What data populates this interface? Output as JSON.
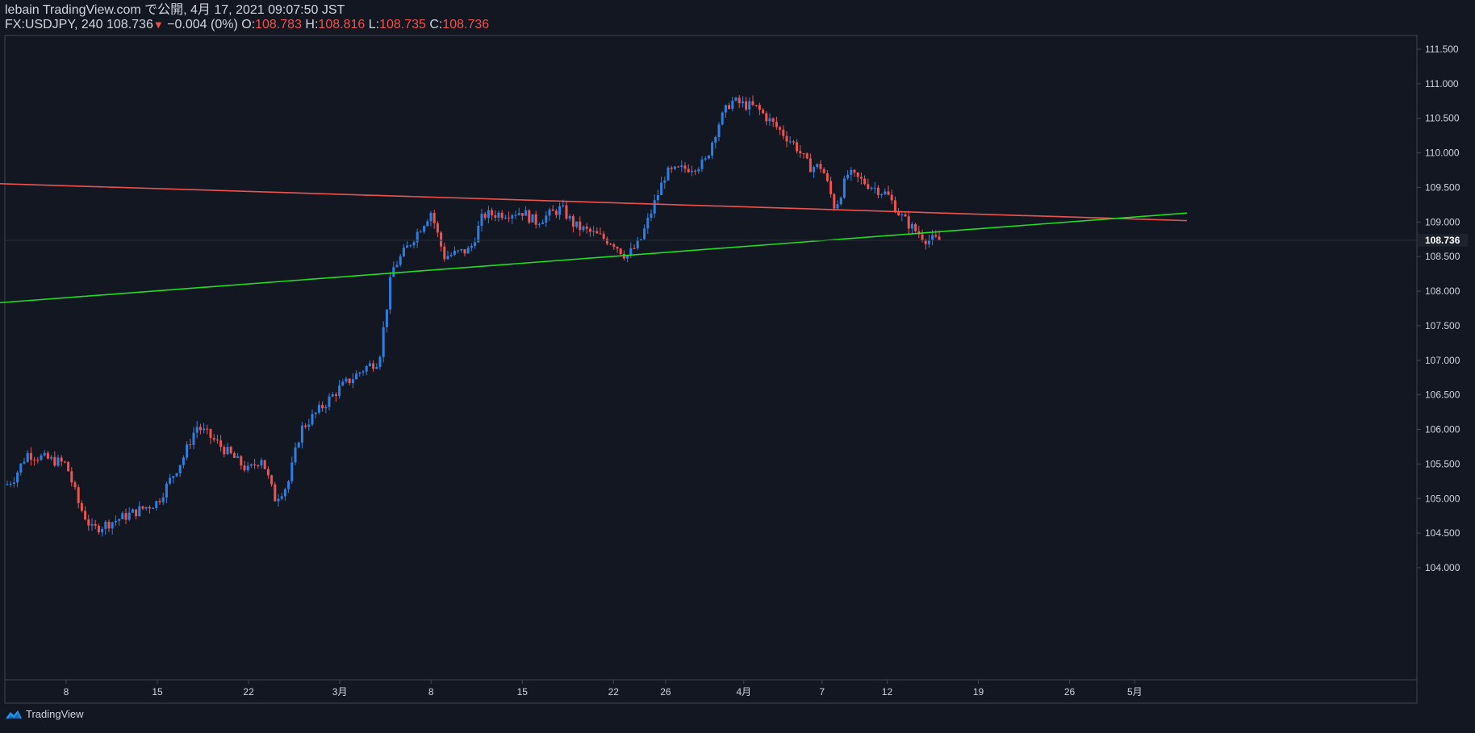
{
  "header": {
    "line1": "lebain TradingView.com で公開, 4月 17, 2021 09:07:50 JST",
    "symbol": "FX:USDJPY, 240",
    "last_price": "108.736",
    "change": "−0.004 (0%)",
    "o_label": "O:",
    "o_value": "108.783",
    "h_label": "H:",
    "h_value": "108.816",
    "l_label": "L:",
    "l_value": "108.735",
    "c_label": "C:",
    "c_value": "108.736"
  },
  "footer": {
    "brand": "TradingView",
    "logo_icon": "tradingview-logo-icon"
  },
  "colors": {
    "background": "#131722",
    "up": "#2962ff",
    "up_candle": "#2f7fe0",
    "down": "#ef5350",
    "resistance": "#ef5350",
    "support": "#22dd22",
    "text": "#d1d4dc",
    "axis": "#363a45"
  },
  "chart_data": {
    "type": "candlestick",
    "y_axis": {
      "ticks": [
        "111.500",
        "111.000",
        "110.500",
        "110.000",
        "109.500",
        "109.000",
        "108.500",
        "108.000",
        "107.500",
        "107.000",
        "106.500",
        "106.000",
        "105.500",
        "105.000",
        "104.500",
        "104.000"
      ],
      "ylim": [
        103.92,
        111.78
      ],
      "last_price_label": "108.736"
    },
    "x_axis": {
      "ticks": [
        {
          "label": "8",
          "date": "2021-02-08"
        },
        {
          "label": "15",
          "date": "2021-02-15"
        },
        {
          "label": "22",
          "date": "2021-02-22"
        },
        {
          "label": "3月",
          "date": "2021-03-01"
        },
        {
          "label": "8",
          "date": "2021-03-08"
        },
        {
          "label": "15",
          "date": "2021-03-15"
        },
        {
          "label": "22",
          "date": "2021-03-22"
        },
        {
          "label": "26",
          "date": "2021-03-26"
        },
        {
          "label": "4月",
          "date": "2021-04-01"
        },
        {
          "label": "7",
          "date": "2021-04-07"
        },
        {
          "label": "12",
          "date": "2021-04-12"
        },
        {
          "label": "19",
          "date": "2021-04-19"
        },
        {
          "label": "26",
          "date": "2021-04-26"
        },
        {
          "label": "5月",
          "date": "2021-05-01"
        }
      ]
    },
    "price_path": [
      {
        "date": "2021-02-02",
        "price": 104.95
      },
      {
        "date": "2021-02-04",
        "price": 105.3
      },
      {
        "date": "2021-02-05",
        "price": 105.65
      },
      {
        "date": "2021-02-08",
        "price": 105.5
      },
      {
        "date": "2021-02-09",
        "price": 104.9
      },
      {
        "date": "2021-02-10",
        "price": 104.55
      },
      {
        "date": "2021-02-12",
        "price": 104.7
      },
      {
        "date": "2021-02-15",
        "price": 104.95
      },
      {
        "date": "2021-02-17",
        "price": 105.6
      },
      {
        "date": "2021-02-18",
        "price": 106.05
      },
      {
        "date": "2021-02-19",
        "price": 105.9
      },
      {
        "date": "2021-02-22",
        "price": 105.4
      },
      {
        "date": "2021-02-23",
        "price": 105.6
      },
      {
        "date": "2021-02-24",
        "price": 105.0
      },
      {
        "date": "2021-02-25",
        "price": 105.2
      },
      {
        "date": "2021-02-26",
        "price": 106.0
      },
      {
        "date": "2021-03-01",
        "price": 106.6
      },
      {
        "date": "2021-03-03",
        "price": 106.9
      },
      {
        "date": "2021-03-04",
        "price": 107.0
      },
      {
        "date": "2021-03-05",
        "price": 108.3
      },
      {
        "date": "2021-03-08",
        "price": 109.15
      },
      {
        "date": "2021-03-09",
        "price": 108.5
      },
      {
        "date": "2021-03-11",
        "price": 108.6
      },
      {
        "date": "2021-03-12",
        "price": 109.1
      },
      {
        "date": "2021-03-15",
        "price": 109.15
      },
      {
        "date": "2021-03-16",
        "price": 109.0
      },
      {
        "date": "2021-03-18",
        "price": 109.2
      },
      {
        "date": "2021-03-19",
        "price": 108.95
      },
      {
        "date": "2021-03-22",
        "price": 108.7
      },
      {
        "date": "2021-03-23",
        "price": 108.5
      },
      {
        "date": "2021-03-24",
        "price": 108.7
      },
      {
        "date": "2021-03-25",
        "price": 109.2
      },
      {
        "date": "2021-03-26",
        "price": 109.7
      },
      {
        "date": "2021-03-29",
        "price": 109.85
      },
      {
        "date": "2021-03-30",
        "price": 110.4
      },
      {
        "date": "2021-03-31",
        "price": 110.75
      },
      {
        "date": "2021-04-01",
        "price": 110.7
      },
      {
        "date": "2021-04-02",
        "price": 110.65
      },
      {
        "date": "2021-04-05",
        "price": 110.1
      },
      {
        "date": "2021-04-06",
        "price": 109.8
      },
      {
        "date": "2021-04-07",
        "price": 109.8
      },
      {
        "date": "2021-04-08",
        "price": 109.2
      },
      {
        "date": "2021-04-09",
        "price": 109.7
      },
      {
        "date": "2021-04-12",
        "price": 109.4
      },
      {
        "date": "2021-04-13",
        "price": 109.1
      },
      {
        "date": "2021-04-14",
        "price": 108.9
      },
      {
        "date": "2021-04-15",
        "price": 108.75
      },
      {
        "date": "2021-04-16",
        "price": 108.736
      }
    ],
    "trendlines": [
      {
        "color": "resistance",
        "from": {
          "date": "2021-02-02",
          "price": 109.56
        },
        "to": {
          "date": "2021-05-05",
          "price": 109.02
        }
      },
      {
        "color": "support",
        "from": {
          "date": "2021-02-02",
          "price": 107.82
        },
        "to": {
          "date": "2021-05-05",
          "price": 109.13
        }
      }
    ]
  }
}
